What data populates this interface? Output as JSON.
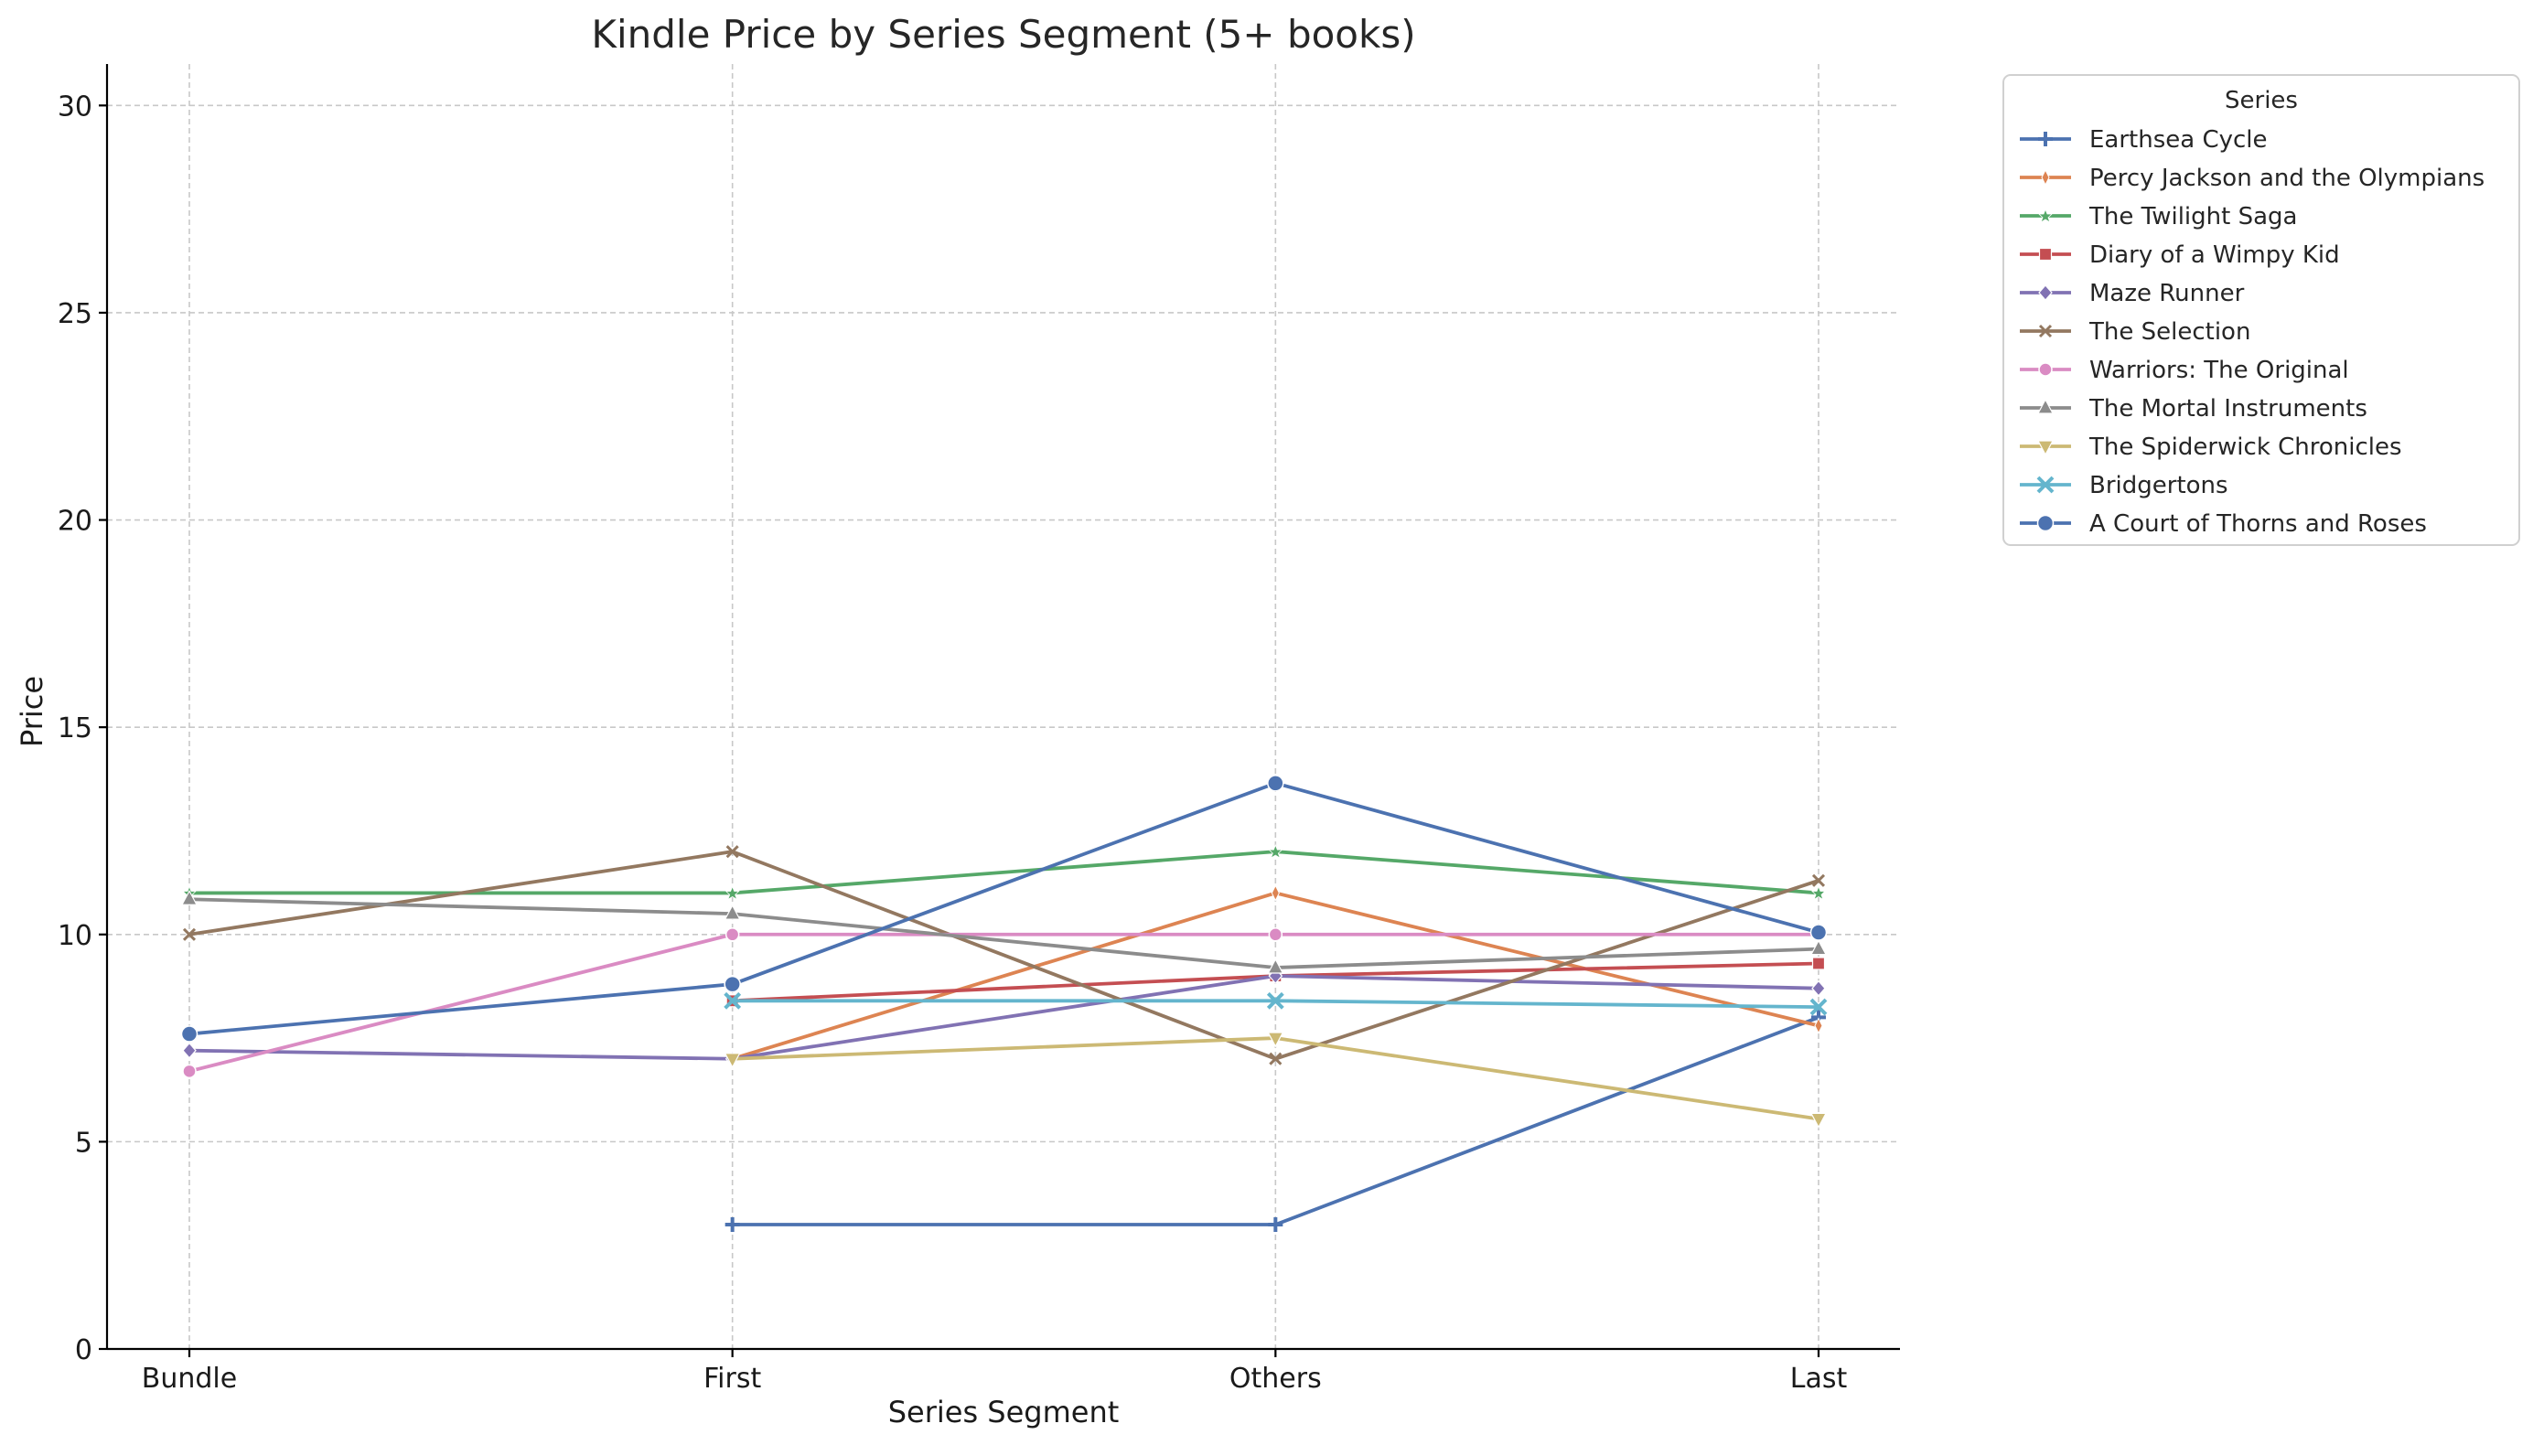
{
  "chart_data": {
    "type": "line",
    "title": "Kindle Price by Series Segment (5+ books)",
    "xlabel": "Series Segment",
    "ylabel": "Price",
    "categories": [
      "Bundle",
      "First",
      "Others",
      "Last"
    ],
    "ylim": [
      0,
      31
    ],
    "yticks": [
      0,
      5,
      10,
      15,
      20,
      25,
      30
    ],
    "grid": true,
    "legend": {
      "title": "Series",
      "placement": "outside-top-right"
    },
    "series": [
      {
        "name": "Earthsea Cycle",
        "color": "#4c72b0",
        "marker": "plus",
        "values": [
          null,
          3.0,
          3.0,
          8.0
        ]
      },
      {
        "name": "Percy Jackson and the Olympians",
        "color": "#dd8452",
        "marker": "thin-diamond",
        "values": [
          null,
          7.0,
          11.0,
          7.8
        ]
      },
      {
        "name": "The Twilight Saga",
        "color": "#55a868",
        "marker": "star",
        "values": [
          11.0,
          11.0,
          12.0,
          11.0
        ]
      },
      {
        "name": "Diary of a Wimpy Kid",
        "color": "#c44e52",
        "marker": "square",
        "values": [
          null,
          8.4,
          9.0,
          9.3
        ]
      },
      {
        "name": "Maze Runner",
        "color": "#8172b3",
        "marker": "diamond",
        "values": [
          7.2,
          7.0,
          9.0,
          8.7
        ]
      },
      {
        "name": "The Selection",
        "color": "#937860",
        "marker": "x-thin",
        "values": [
          10.0,
          12.0,
          7.0,
          11.3
        ]
      },
      {
        "name": "Warriors: The Original",
        "color": "#da8bc3",
        "marker": "circle",
        "values": [
          6.7,
          10.0,
          10.0,
          10.0
        ]
      },
      {
        "name": "The Mortal Instruments",
        "color": "#8c8c8c",
        "marker": "triangle-up",
        "values": [
          10.85,
          10.5,
          9.2,
          9.65
        ]
      },
      {
        "name": "The Spiderwick Chronicles",
        "color": "#ccb974",
        "marker": "triangle-down",
        "values": [
          null,
          7.0,
          7.5,
          5.55
        ]
      },
      {
        "name": "Bridgertons",
        "color": "#64b5cd",
        "marker": "x",
        "values": [
          null,
          8.4,
          8.4,
          8.25
        ]
      },
      {
        "name": "A Court of Thorns and Roses",
        "color": "#4c72b0",
        "marker": "circle-large",
        "values": [
          7.6,
          8.8,
          13.65,
          10.05
        ]
      }
    ]
  }
}
